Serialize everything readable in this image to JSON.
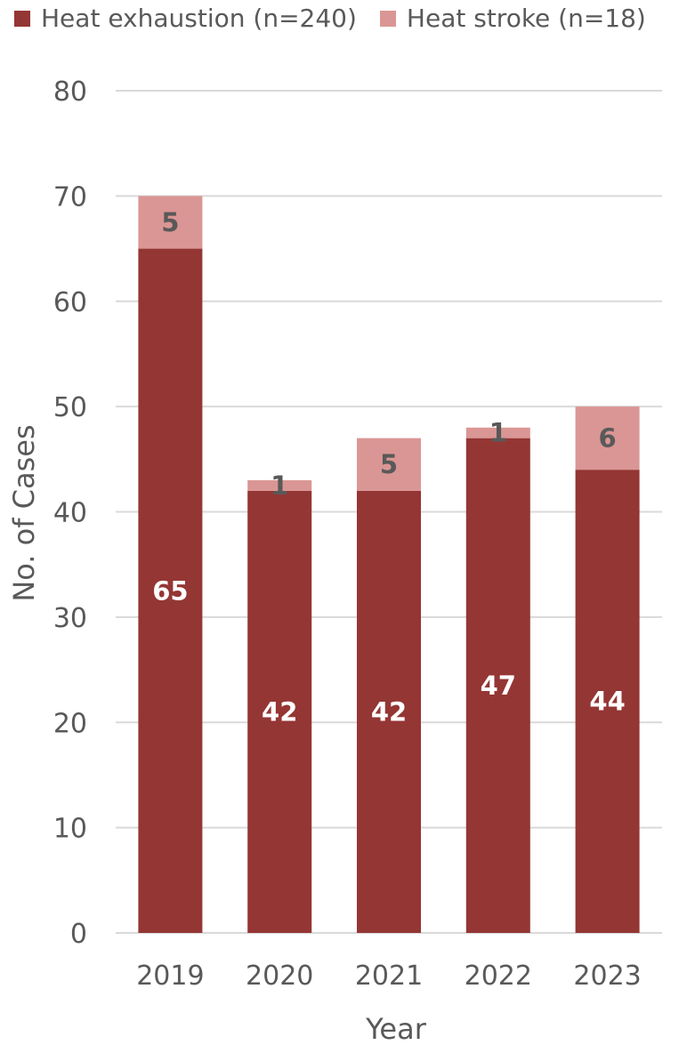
{
  "chart_data": {
    "type": "bar",
    "stacked": true,
    "categories": [
      "2019",
      "2020",
      "2021",
      "2022",
      "2023"
    ],
    "series": [
      {
        "name": "Heat exhaustion (n=240)",
        "values": [
          65,
          42,
          42,
          47,
          44
        ],
        "color": "#943634",
        "label_color": "#ffffff"
      },
      {
        "name": "Heat stroke (n=18)",
        "values": [
          5,
          1,
          5,
          1,
          6
        ],
        "color": "#DA9694",
        "label_color": "#595959"
      }
    ],
    "xlabel": "Year",
    "ylabel": "No. of Cases",
    "ylim": [
      0,
      80
    ],
    "yticks": [
      "0",
      "10",
      "20",
      "30",
      "40",
      "50",
      "60",
      "70",
      "80"
    ],
    "grid": true,
    "legend_position": "top"
  }
}
